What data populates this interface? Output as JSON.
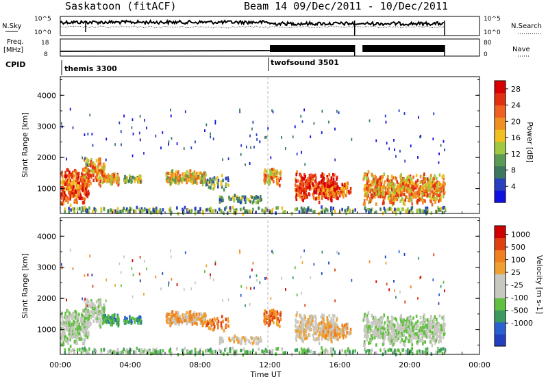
{
  "header": {
    "station": "Saskatoon (fitACF)",
    "beam_label": "Beam 14  09/Dec/2011 - 10/Dec/2011"
  },
  "top_panels": {
    "nsky": {
      "left_label_1": "N.Sky",
      "left_ticks": [
        "10^5",
        "10^0"
      ],
      "right_label": "N.Search",
      "right_ticks": [
        "10^5",
        "10^0"
      ]
    },
    "freq": {
      "left_label_1": "Freq.",
      "left_label_2": "[MHz]",
      "left_ticks": [
        "18",
        "8"
      ],
      "right_label": "Nave",
      "right_ticks": [
        "80",
        "0"
      ]
    },
    "cpid": {
      "label": "CPID",
      "modes": [
        {
          "name": "themis 3300",
          "start_h": 0
        },
        {
          "name": "twofsound 3501",
          "start_h": 12
        }
      ]
    }
  },
  "chart_data": [
    {
      "type": "heatmap",
      "title": "Power",
      "ylabel": "Slant Range [km]",
      "xlabel": "",
      "xlim_hours": [
        0,
        24
      ],
      "ylim": [
        200,
        4600
      ],
      "yticks": [
        "1000",
        "2000",
        "3000",
        "4000"
      ],
      "colorbar": {
        "label": "Power [dB]",
        "ticks": [
          "4",
          "8",
          "12",
          "16",
          "20",
          "24",
          "28"
        ],
        "range": [
          0,
          30
        ],
        "colors": [
          "#1010e0",
          "#2840c0",
          "#3c7860",
          "#5a9a55",
          "#a0c840",
          "#f0c020",
          "#f09020",
          "#f06020",
          "#e03010",
          "#d80000"
        ]
      }
    },
    {
      "type": "heatmap",
      "title": "Velocity",
      "ylabel": "Slant Range [km]",
      "xlabel": "Time UT",
      "xlim_hours": [
        0,
        24
      ],
      "ylim": [
        200,
        4600
      ],
      "yticks": [
        "1000",
        "2000",
        "3000",
        "4000"
      ],
      "xticks": [
        "00:00",
        "04:00",
        "08:00",
        "12:00",
        "16:00",
        "20:00",
        "00:00"
      ],
      "colorbar": {
        "label": "Velocity [m s-1]",
        "ticks": [
          "1000",
          "500",
          "100",
          "25",
          "-25",
          "-100",
          "-500",
          "-1000"
        ],
        "colors": [
          "#2040c0",
          "#2a60d0",
          "#3a9a60",
          "#60c040",
          "#c8c8c0",
          "#c8c8c0",
          "#f0a030",
          "#f08020",
          "#e04010",
          "#d00000"
        ]
      }
    }
  ]
}
